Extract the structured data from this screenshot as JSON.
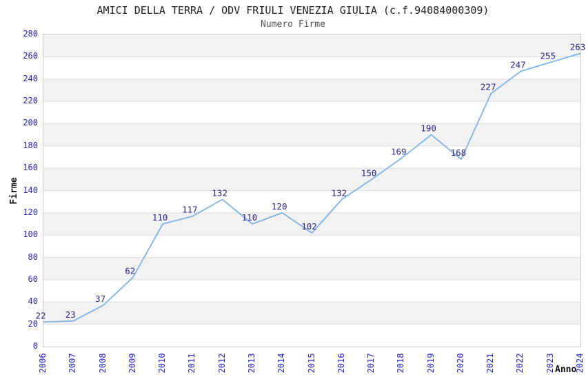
{
  "chart_data": {
    "type": "line",
    "title": "AMICI DELLA TERRA / ODV FRIULI VENEZIA GIULIA (c.f.94084000309)",
    "subtitle": "Numero Firme",
    "xlabel": "Anno",
    "ylabel": "Firme",
    "categories": [
      "2006",
      "2007",
      "2008",
      "2009",
      "2010",
      "2011",
      "2012",
      "2013",
      "2014",
      "2015",
      "2016",
      "2017",
      "2018",
      "2019",
      "2020",
      "2021",
      "2022",
      "2023",
      "2024"
    ],
    "series": [
      {
        "name": "Numero Firme",
        "values": [
          22,
          23,
          37,
          62,
          110,
          117,
          132,
          110,
          120,
          102,
          132,
          150,
          169,
          190,
          168,
          227,
          247,
          255,
          263
        ]
      }
    ],
    "point_labels_shown": true,
    "ylim": [
      0,
      280
    ],
    "ytick_step": 20,
    "y_ticks": [
      0,
      20,
      40,
      60,
      80,
      100,
      120,
      140,
      160,
      180,
      200,
      220,
      240,
      260,
      280
    ],
    "grid": "horizontal-gridlines-with-alternating-bands",
    "legend_position": "none",
    "colors": {
      "line": "#7FB2E5",
      "point_label": "#26268C",
      "tick_label": "#2323CE",
      "title": "#222222",
      "subtitle": "#555555",
      "axis_title": "#111111",
      "band": "#F2F2F2",
      "gridline": "#DDDDDD",
      "plot_border": "#C8C8C8",
      "background": "#FFFFFF"
    }
  }
}
